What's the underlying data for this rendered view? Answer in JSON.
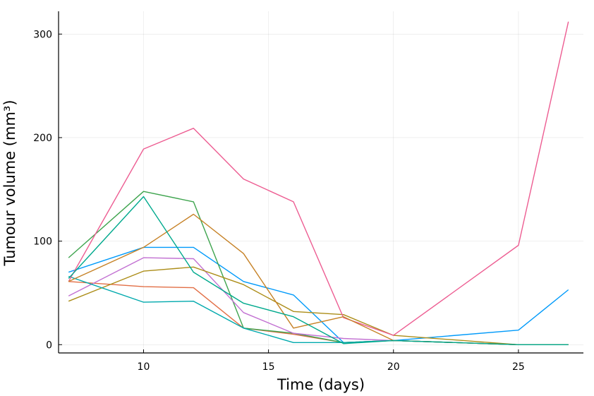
{
  "chart_data": {
    "type": "line",
    "xlabel": "Time (days)",
    "ylabel": "Tumour volume (mm³)",
    "xlim": [
      6.6,
      27.6
    ],
    "ylim": [
      -8,
      322
    ],
    "xticks": [
      10,
      15,
      20,
      25
    ],
    "yticks": [
      0,
      100,
      200,
      300
    ],
    "grid": true,
    "legend": "none",
    "series": [
      {
        "color": "#009AFA",
        "x": [
          7,
          10,
          12,
          14,
          16,
          18,
          20,
          25,
          27
        ],
        "y": [
          70,
          94,
          94,
          61,
          48,
          2,
          4,
          14,
          53
        ]
      },
      {
        "color": "#E26F46",
        "x": [
          7,
          10,
          12,
          14,
          16,
          18,
          20,
          25,
          27
        ],
        "y": [
          61,
          56,
          55,
          16,
          10,
          2,
          4,
          0,
          0
        ]
      },
      {
        "color": "#3EA44E",
        "x": [
          7,
          10,
          12,
          14,
          16,
          18,
          20,
          25,
          27
        ],
        "y": [
          84,
          148,
          138,
          16,
          11,
          2,
          4,
          0,
          0
        ]
      },
      {
        "color": "#C271D2",
        "x": [
          7,
          10,
          12,
          14,
          16,
          18,
          20,
          25,
          27
        ],
        "y": [
          47,
          84,
          83,
          31,
          11,
          6,
          4,
          0,
          0
        ]
      },
      {
        "color": "#AC8D18",
        "x": [
          7,
          10,
          12,
          14,
          16,
          18,
          20,
          25,
          27
        ],
        "y": [
          42,
          71,
          75,
          58,
          32,
          29,
          9,
          0,
          0
        ]
      },
      {
        "color": "#00A9AD",
        "x": [
          7,
          10,
          12,
          14,
          16,
          18,
          20,
          25,
          27
        ],
        "y": [
          66,
          41,
          42,
          16,
          2,
          2,
          4,
          0,
          0
        ]
      },
      {
        "color": "#ED5D92",
        "x": [
          7,
          10,
          12,
          14,
          16,
          18,
          20,
          25,
          27
        ],
        "y": [
          61,
          189,
          209,
          160,
          138,
          26,
          9,
          96,
          312
        ]
      },
      {
        "color": "#C68125",
        "x": [
          7,
          10,
          12,
          14,
          16,
          18,
          20,
          25,
          27
        ],
        "y": [
          61,
          94,
          126,
          88,
          16,
          27,
          4,
          0,
          0
        ]
      },
      {
        "color": "#00A98D",
        "x": [
          7,
          10,
          12,
          14,
          16,
          18,
          20,
          25,
          27
        ],
        "y": [
          64,
          143,
          70,
          40,
          27,
          1,
          4,
          0,
          0
        ]
      }
    ]
  }
}
